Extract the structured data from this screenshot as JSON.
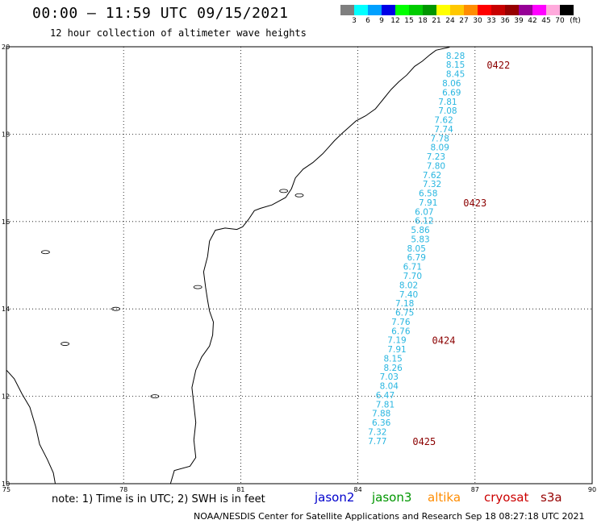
{
  "header": {
    "title": "00:00 – 11:59 UTC 09/15/2021",
    "subtitle": "12 hour collection of altimeter wave heights"
  },
  "color_scale": {
    "colors": [
      "#7f7f7f",
      "#00ffff",
      "#00a0ff",
      "#0000e6",
      "#00ff00",
      "#00cc00",
      "#009600",
      "#ffff00",
      "#ffc800",
      "#ff8c00",
      "#ff0000",
      "#c80000",
      "#960000",
      "#960096",
      "#ff00ff",
      "#ffaadc",
      "#000000"
    ],
    "labels": [
      "3",
      "6",
      "9",
      "12",
      "15",
      "18",
      "21",
      "24",
      "27",
      "30",
      "33",
      "36",
      "39",
      "42",
      "45",
      "70"
    ],
    "unit": "(ft)"
  },
  "chart_data": {
    "type": "scatter",
    "title": "00:00 – 11:59 UTC 09/15/2021",
    "subtitle": "12 hour collection of altimeter wave heights",
    "xlim": [
      75,
      90
    ],
    "ylim": [
      10,
      20
    ],
    "x_ticks": [
      "75",
      "78",
      "81",
      "84",
      "87",
      "90"
    ],
    "y_ticks": [
      "10",
      "12",
      "14",
      "16",
      "18",
      "20"
    ],
    "grid": true,
    "series": [
      {
        "name": "jason3",
        "color": "#29b6e0",
        "values": [
          {
            "x": 86.5,
            "y": 19.8,
            "label": "8.28"
          },
          {
            "x": 86.5,
            "y": 19.59,
            "label": "8.15"
          },
          {
            "x": 86.5,
            "y": 19.38,
            "label": "8.45"
          },
          {
            "x": 86.4,
            "y": 19.17,
            "label": "8.06"
          },
          {
            "x": 86.4,
            "y": 18.96,
            "label": "6.69"
          },
          {
            "x": 86.3,
            "y": 18.75,
            "label": "7.81"
          },
          {
            "x": 86.3,
            "y": 18.54,
            "label": "7.08"
          },
          {
            "x": 86.2,
            "y": 18.33,
            "label": "7.62"
          },
          {
            "x": 86.2,
            "y": 18.12,
            "label": "7.74"
          },
          {
            "x": 86.1,
            "y": 17.91,
            "label": "7.78"
          },
          {
            "x": 86.1,
            "y": 17.7,
            "label": "8.09"
          },
          {
            "x": 86.0,
            "y": 17.49,
            "label": "7.23"
          },
          {
            "x": 86.0,
            "y": 17.28,
            "label": "7.80"
          },
          {
            "x": 85.9,
            "y": 17.07,
            "label": "7.62"
          },
          {
            "x": 85.9,
            "y": 16.86,
            "label": "7.32"
          },
          {
            "x": 85.8,
            "y": 16.65,
            "label": "6.58"
          },
          {
            "x": 85.8,
            "y": 16.44,
            "label": "7.91"
          },
          {
            "x": 85.7,
            "y": 16.23,
            "label": "6.07"
          },
          {
            "x": 85.7,
            "y": 16.02,
            "label": "6.12"
          },
          {
            "x": 85.6,
            "y": 15.81,
            "label": "5.86"
          },
          {
            "x": 85.6,
            "y": 15.6,
            "label": "5.83"
          },
          {
            "x": 85.5,
            "y": 15.39,
            "label": "8.05"
          },
          {
            "x": 85.5,
            "y": 15.18,
            "label": "6.79"
          },
          {
            "x": 85.4,
            "y": 14.97,
            "label": "6.71"
          },
          {
            "x": 85.4,
            "y": 14.76,
            "label": "7.70"
          },
          {
            "x": 85.3,
            "y": 14.55,
            "label": "8.02"
          },
          {
            "x": 85.3,
            "y": 14.34,
            "label": "7.40"
          },
          {
            "x": 85.2,
            "y": 14.13,
            "label": "7.18"
          },
          {
            "x": 85.2,
            "y": 13.92,
            "label": "6.75"
          },
          {
            "x": 85.1,
            "y": 13.71,
            "label": "7.76"
          },
          {
            "x": 85.1,
            "y": 13.5,
            "label": "6.76"
          },
          {
            "x": 85.0,
            "y": 13.29,
            "label": "7.19"
          },
          {
            "x": 85.0,
            "y": 13.08,
            "label": "7.91"
          },
          {
            "x": 84.9,
            "y": 12.87,
            "label": "8.15"
          },
          {
            "x": 84.9,
            "y": 12.66,
            "label": "8.26"
          },
          {
            "x": 84.8,
            "y": 12.45,
            "label": "7.03"
          },
          {
            "x": 84.8,
            "y": 12.24,
            "label": "8.04"
          },
          {
            "x": 84.7,
            "y": 12.03,
            "label": "6.47"
          },
          {
            "x": 84.7,
            "y": 11.82,
            "label": "7.81"
          },
          {
            "x": 84.6,
            "y": 11.61,
            "label": "7.88"
          },
          {
            "x": 84.6,
            "y": 11.4,
            "label": "6.36"
          },
          {
            "x": 84.5,
            "y": 11.19,
            "label": "7.32"
          },
          {
            "x": 84.5,
            "y": 10.98,
            "label": "7.77"
          }
        ]
      }
    ],
    "time_labels": [
      {
        "x": 87.3,
        "y": 19.59,
        "label": "0422"
      },
      {
        "x": 86.7,
        "y": 16.44,
        "label": "0423"
      },
      {
        "x": 85.9,
        "y": 13.29,
        "label": "0424"
      },
      {
        "x": 85.4,
        "y": 10.98,
        "label": "0425"
      }
    ]
  },
  "coastline": [
    [
      86.35,
      19.99
    ],
    [
      86.0,
      19.92
    ],
    [
      85.85,
      19.82
    ],
    [
      85.65,
      19.67
    ],
    [
      85.45,
      19.55
    ],
    [
      85.25,
      19.35
    ],
    [
      85.05,
      19.2
    ],
    [
      84.85,
      19.02
    ],
    [
      84.65,
      18.8
    ],
    [
      84.45,
      18.58
    ],
    [
      84.2,
      18.42
    ],
    [
      83.95,
      18.3
    ],
    [
      83.8,
      18.18
    ],
    [
      83.6,
      18.02
    ],
    [
      83.4,
      17.85
    ],
    [
      83.25,
      17.7
    ],
    [
      83.1,
      17.55
    ],
    [
      82.85,
      17.35
    ],
    [
      82.6,
      17.2
    ],
    [
      82.4,
      17.0
    ],
    [
      82.3,
      16.75
    ],
    [
      82.15,
      16.55
    ],
    [
      81.8,
      16.38
    ],
    [
      81.5,
      16.3
    ],
    [
      81.35,
      16.25
    ],
    [
      81.2,
      16.05
    ],
    [
      81.05,
      15.88
    ],
    [
      80.9,
      15.82
    ],
    [
      80.6,
      15.85
    ],
    [
      80.35,
      15.8
    ],
    [
      80.2,
      15.55
    ],
    [
      80.15,
      15.2
    ],
    [
      80.05,
      14.85
    ],
    [
      80.1,
      14.5
    ],
    [
      80.15,
      14.2
    ],
    [
      80.2,
      13.95
    ],
    [
      80.3,
      13.7
    ],
    [
      80.28,
      13.4
    ],
    [
      80.2,
      13.15
    ],
    [
      80.0,
      12.9
    ],
    [
      79.85,
      12.6
    ],
    [
      79.75,
      12.2
    ],
    [
      79.8,
      11.8
    ],
    [
      79.85,
      11.4
    ],
    [
      79.8,
      11.0
    ],
    [
      79.85,
      10.6
    ],
    [
      79.7,
      10.4
    ],
    [
      79.3,
      10.3
    ],
    [
      79.2,
      10.0
    ]
  ],
  "west_coastline": [
    [
      75.0,
      12.6
    ],
    [
      75.2,
      12.4
    ],
    [
      75.4,
      12.05
    ],
    [
      75.6,
      11.75
    ],
    [
      75.75,
      11.3
    ],
    [
      75.85,
      10.9
    ],
    [
      76.05,
      10.55
    ],
    [
      76.2,
      10.25
    ],
    [
      76.25,
      10.0
    ]
  ],
  "note": "note:  1) Time is in UTC;  2) SWH is in feet",
  "satellites": [
    {
      "name": "jason2",
      "color": "#0000cc"
    },
    {
      "name": "jason3",
      "color": "#009600"
    },
    {
      "name": "altika",
      "color": "#ff8c00"
    },
    {
      "name": "cryosat",
      "color": "#cc0000"
    },
    {
      "name": "s3a",
      "color": "#960000"
    }
  ],
  "footer": "NOAA/NESDIS Center for Satellite Applications and Research    Sep 18 08:27:18 UTC 2021"
}
